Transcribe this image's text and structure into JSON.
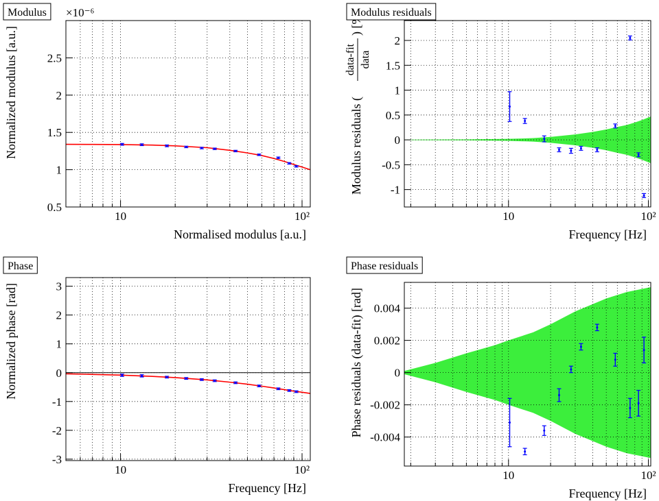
{
  "chart_data": [
    {
      "type": "errorbar",
      "title": "Modulus",
      "xlabel": "Normalised modulus [a.u.]",
      "ylabel": "Normalized modulus [a.u.]",
      "y_multiplier": "×10⁻⁶",
      "log_x": true,
      "xlim": [
        5,
        111
      ],
      "xticks": [
        10,
        {
          "value": 100,
          "label": "10²"
        }
      ],
      "xminorticks": [
        5,
        6,
        7,
        8,
        9,
        20,
        30,
        40,
        50,
        60,
        70,
        80,
        90
      ],
      "ylim": [
        0.5,
        3.0
      ],
      "yticks": [
        0.5,
        1,
        1.5,
        2,
        2.5
      ],
      "grid": true,
      "fit": {
        "color": "#ff0000",
        "x": [
          5,
          7,
          10,
          15,
          20,
          30,
          40,
          50,
          60,
          70,
          80,
          90,
          100,
          111
        ],
        "values": [
          1.34,
          1.339,
          1.337,
          1.33,
          1.32,
          1.295,
          1.26,
          1.225,
          1.19,
          1.15,
          1.11,
          1.07,
          1.035,
          1.0
        ]
      },
      "series": [
        {
          "color": "#0000ff",
          "x": [
            10.2,
            13.1,
            18,
            23,
            28,
            33,
            43,
            58,
            74,
            85,
            93
          ],
          "values": [
            1.34,
            1.335,
            1.32,
            1.305,
            1.29,
            1.28,
            1.25,
            1.2,
            1.16,
            1.085,
            1.045
          ],
          "errors": [
            0.012,
            0.012,
            0.012,
            0.01,
            0.01,
            0.01,
            0.01,
            0.01,
            0.01,
            0.01,
            0.01
          ]
        }
      ]
    },
    {
      "type": "errorbar",
      "title": "Modulus residuals",
      "xlabel": "Frequency [Hz]",
      "ylabel": "Modulus residuals (",
      "ylabel_numerator": "data-fit",
      "ylabel_denominator": "data",
      "ylabel_end": ") [%]",
      "log_x": true,
      "xlim": [
        1.8,
        104
      ],
      "xticks": [
        10,
        {
          "value": 100,
          "label": "10²"
        }
      ],
      "xminorticks": [
        2,
        3,
        4,
        5,
        6,
        7,
        8,
        9,
        20,
        30,
        40,
        50,
        60,
        70,
        80,
        90
      ],
      "ylim": [
        -1.35,
        2.4
      ],
      "yticks": [
        -1,
        -0.5,
        0,
        0.5,
        1,
        1.5,
        2
      ],
      "grid": true,
      "band": {
        "color": "#3cee3c",
        "x": [
          1.8,
          5,
          10,
          15,
          20,
          30,
          40,
          50,
          60,
          70,
          80,
          90,
          104
        ],
        "values": [
          0.005,
          0.01,
          0.02,
          0.035,
          0.06,
          0.11,
          0.16,
          0.21,
          0.26,
          0.3,
          0.35,
          0.4,
          0.47
        ]
      },
      "series": [
        {
          "color": "#0000ff",
          "x": [
            10.2,
            13.1,
            18,
            23,
            28,
            33,
            43,
            58,
            74,
            85,
            93
          ],
          "values": [
            0.67,
            0.38,
            0.02,
            -0.2,
            -0.22,
            -0.17,
            -0.2,
            0.28,
            2.05,
            -0.3,
            -1.12
          ],
          "errors": [
            0.3,
            0.05,
            0.06,
            0.04,
            0.05,
            0.04,
            0.04,
            0.04,
            0.04,
            0.04,
            0.04
          ]
        }
      ]
    },
    {
      "type": "errorbar",
      "title": "Phase",
      "xlabel": "Frequency [Hz]",
      "ylabel": "Normalized phase [rad]",
      "log_x": true,
      "xlim": [
        5,
        111
      ],
      "xticks": [
        10,
        {
          "value": 100,
          "label": "10²"
        }
      ],
      "xminorticks": [
        5,
        6,
        7,
        8,
        9,
        20,
        30,
        40,
        50,
        60,
        70,
        80,
        90
      ],
      "ylim": [
        -3.05,
        3.3
      ],
      "yticks": [
        -3,
        -2,
        -1,
        0,
        1,
        2,
        3
      ],
      "grid": true,
      "zero_line": true,
      "fit": {
        "color": "#ff0000",
        "x": [
          5,
          7,
          10,
          15,
          20,
          30,
          40,
          50,
          60,
          70,
          80,
          90,
          100,
          111
        ],
        "values": [
          -0.04,
          -0.06,
          -0.085,
          -0.13,
          -0.17,
          -0.25,
          -0.33,
          -0.4,
          -0.47,
          -0.53,
          -0.59,
          -0.64,
          -0.68,
          -0.72
        ]
      },
      "series": [
        {
          "color": "#0000ff",
          "x": [
            10.2,
            13.1,
            18,
            23,
            28,
            33,
            43,
            58,
            74,
            85,
            93
          ],
          "values": [
            -0.09,
            -0.11,
            -0.155,
            -0.2,
            -0.24,
            -0.28,
            -0.35,
            -0.46,
            -0.56,
            -0.62,
            -0.66
          ],
          "errors": [
            0.04,
            0.04,
            0.03,
            0.03,
            0.03,
            0.03,
            0.03,
            0.03,
            0.03,
            0.03,
            0.03
          ]
        }
      ]
    },
    {
      "type": "errorbar",
      "title": "Phase residuals",
      "xlabel": "Frequency [Hz]",
      "ylabel": "Phase residuals (data-fit) [rad]",
      "log_x": true,
      "xlim": [
        1.8,
        104
      ],
      "xticks": [
        10,
        {
          "value": 100,
          "label": "10²"
        }
      ],
      "xminorticks": [
        2,
        3,
        4,
        5,
        6,
        7,
        8,
        9,
        20,
        30,
        40,
        50,
        60,
        70,
        80,
        90
      ],
      "ylim": [
        -0.0058,
        0.0056
      ],
      "yticks": [
        -0.004,
        -0.002,
        0,
        0.002,
        0.004
      ],
      "grid": true,
      "band": {
        "color": "#3cee3c",
        "x": [
          1.8,
          3,
          5,
          8,
          10,
          15,
          20,
          30,
          50,
          70,
          104
        ],
        "values": [
          0.0001,
          0.0006,
          0.0012,
          0.0017,
          0.002,
          0.0025,
          0.003,
          0.0038,
          0.0046,
          0.005,
          0.0053
        ]
      },
      "series": [
        {
          "color": "#0000ff",
          "x": [
            10.2,
            13.1,
            18,
            23,
            28,
            33,
            43,
            58,
            74,
            85,
            93
          ],
          "values": [
            -0.0031,
            -0.0049,
            -0.0036,
            -0.0014,
            0.0002,
            0.0016,
            0.0028,
            0.0008,
            -0.0022,
            -0.0019,
            0.0014
          ],
          "errors": [
            0.0015,
            0.0002,
            0.0003,
            0.0004,
            0.0002,
            0.0002,
            0.0002,
            0.0004,
            0.0006,
            0.0008,
            0.0008
          ]
        }
      ]
    }
  ]
}
